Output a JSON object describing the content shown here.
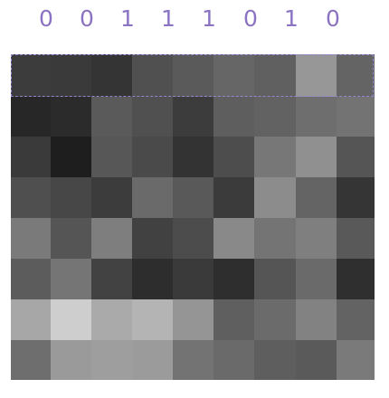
{
  "bit_labels": [
    "0",
    "0",
    "1",
    "1",
    "1",
    "0",
    "1",
    "0"
  ],
  "colors": {
    "label": "#8a73c2",
    "highlight_border": "#9a83cf"
  },
  "matrix": [
    [
      "#3c3c3c",
      "#3a3a3a",
      "#343434",
      "#505050",
      "#5a5a5a",
      "#666666",
      "#606060",
      "#979797",
      "#646464"
    ],
    [
      "#272727",
      "#2b2b2b",
      "#5a5a5a",
      "#505050",
      "#3c3c3c",
      "#5e5e5e",
      "#626262",
      "#6e6e6e",
      "#737373"
    ],
    [
      "#3a3a3a",
      "#1e1e1e",
      "#575757",
      "#4a4a4a",
      "#333333",
      "#4d4d4d",
      "#777777",
      "#909090",
      "#555555"
    ],
    [
      "#4f4f4f",
      "#474747",
      "#3c3c3c",
      "#6a6a6a",
      "#595959",
      "#3b3b3b",
      "#8c8c8c",
      "#646464",
      "#353535"
    ],
    [
      "#7a7a7a",
      "#555555",
      "#7e7e7e",
      "#414141",
      "#4c4c4c",
      "#898989",
      "#747474",
      "#7f7f7f",
      "#595959"
    ],
    [
      "#5c5c5c",
      "#757575",
      "#424242",
      "#2d2d2d",
      "#3a3a3a",
      "#2e2e2e",
      "#555555",
      "#6a6a6a",
      "#2f2f2f"
    ],
    [
      "#a7a7a7",
      "#cecece",
      "#aaaaaa",
      "#b4b4b4",
      "#959595",
      "#5f5f5f",
      "#6b6b6b",
      "#828282",
      "#636363"
    ],
    [
      "#6e6e6e",
      "#9a9a9a",
      "#9e9e9e",
      "#9b9b9b",
      "#737373",
      "#6a6a6a",
      "#5e5e5e",
      "#5a5a5a",
      "#7a7a7a"
    ]
  ]
}
